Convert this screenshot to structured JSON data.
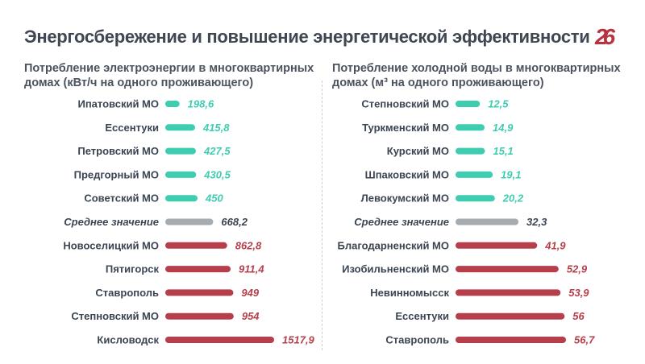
{
  "title": "Энергосбережение и повышение энергетической эффективности",
  "logo": "26",
  "colors": {
    "good": "#3ecdb1",
    "average": "#a7acb1",
    "bad": "#b63f4b",
    "avg_text": "#3b4552"
  },
  "chart_data": [
    {
      "type": "bar",
      "title": "Потребление электроэнергии в многоквартирных домах (кВт/ч на одного проживающего)",
      "categories": [
        "Ипатовский МО",
        "Ессентуки",
        "Петровский МО",
        "Предгорный МО",
        "Советский МО",
        "Среднее значение",
        "Новоселицкий МО",
        "Пятигорск",
        "Ставрополь",
        "Степновский МО",
        "Кисловодск"
      ],
      "values": [
        198.6,
        415.8,
        427.5,
        430.5,
        450,
        668.2,
        862.8,
        911.4,
        949,
        954,
        1517.9
      ],
      "labels": [
        "198,6",
        "415,8",
        "427,5",
        "430,5",
        "450",
        "668,2",
        "862,8",
        "911,4",
        "949",
        "954",
        "1517,9"
      ],
      "groups": [
        "good",
        "good",
        "good",
        "good",
        "good",
        "average",
        "bad",
        "bad",
        "bad",
        "bad",
        "bad"
      ]
    },
    {
      "type": "bar",
      "title": "Потребление холодной воды в многоквартирных домах (м³ на одного проживающего)",
      "categories": [
        "Степновский МО",
        "Туркменский МО",
        "Курский МО",
        "Шпаковский МО",
        "Левокумский МО",
        "Среднее значение",
        "Благодарненский МО",
        "Изобильненский МО",
        "Невинномысск",
        "Ессентуки",
        "Ставрополь"
      ],
      "values": [
        12.5,
        14.9,
        15.1,
        19.1,
        20.2,
        32.3,
        41.9,
        52.9,
        53.9,
        56,
        56.7
      ],
      "labels": [
        "12,5",
        "14,9",
        "15,1",
        "19,1",
        "20,2",
        "32,3",
        "41,9",
        "52,9",
        "53,9",
        "56",
        "56,7"
      ],
      "groups": [
        "good",
        "good",
        "good",
        "good",
        "good",
        "average",
        "bad",
        "bad",
        "bad",
        "bad",
        "bad"
      ]
    }
  ]
}
